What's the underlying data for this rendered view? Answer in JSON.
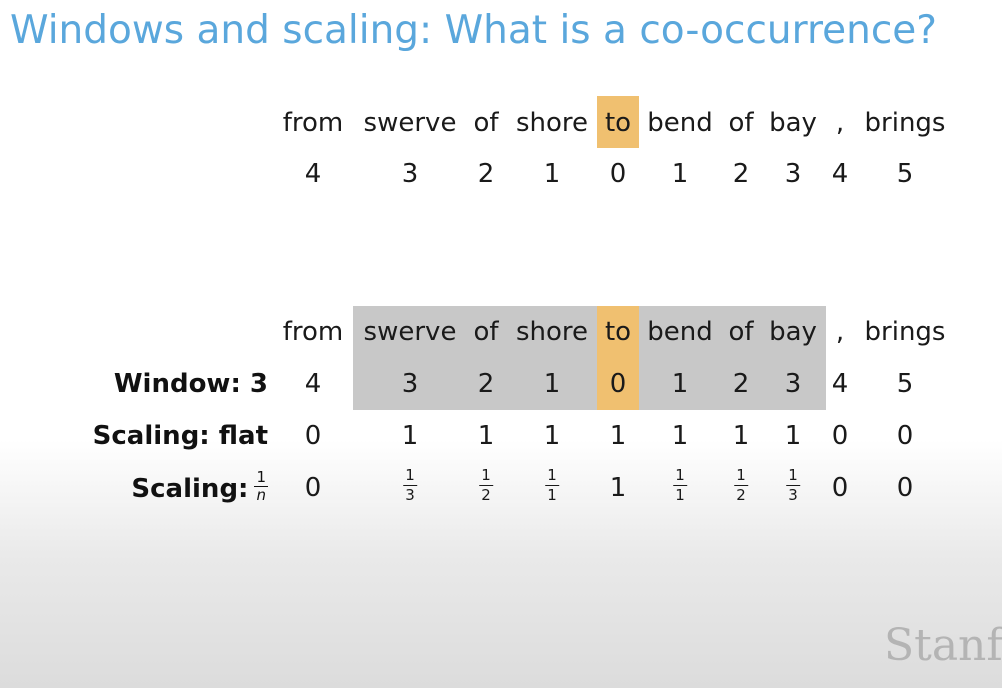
{
  "title": "Windows and scaling: What is a co-occurrence?",
  "example1": {
    "tokens": [
      "from",
      "swerve",
      "of",
      "shore",
      "to",
      "bend",
      "of",
      "bay",
      ",",
      "brings"
    ],
    "distances": [
      "4",
      "3",
      "2",
      "1",
      "0",
      "1",
      "2",
      "3",
      "4",
      "5"
    ]
  },
  "example2": {
    "tokens": [
      "from",
      "swerve",
      "of",
      "shore",
      "to",
      "bend",
      "of",
      "bay",
      ",",
      "brings"
    ],
    "window_label": "Window: 3",
    "distances": [
      "4",
      "3",
      "2",
      "1",
      "0",
      "1",
      "2",
      "3",
      "4",
      "5"
    ],
    "flat_label": "Scaling: flat",
    "flat_values": [
      "0",
      "1",
      "1",
      "1",
      "1",
      "1",
      "1",
      "1",
      "0",
      "0"
    ],
    "inverse_label": "Scaling:",
    "inverse_label_num": "1",
    "inverse_label_den": "n",
    "inverse_values": [
      {
        "text": "0"
      },
      {
        "num": "1",
        "den": "3"
      },
      {
        "num": "1",
        "den": "2"
      },
      {
        "num": "1",
        "den": "1"
      },
      {
        "text": "1"
      },
      {
        "num": "1",
        "den": "1"
      },
      {
        "num": "1",
        "den": "2"
      },
      {
        "num": "1",
        "den": "3"
      },
      {
        "text": "0"
      },
      {
        "text": "0"
      }
    ]
  },
  "colors": {
    "title": "#5aa7dc",
    "target_highlight": "#f0c070",
    "window_highlight": "#c8c8c8"
  },
  "brand": "Stanfo"
}
